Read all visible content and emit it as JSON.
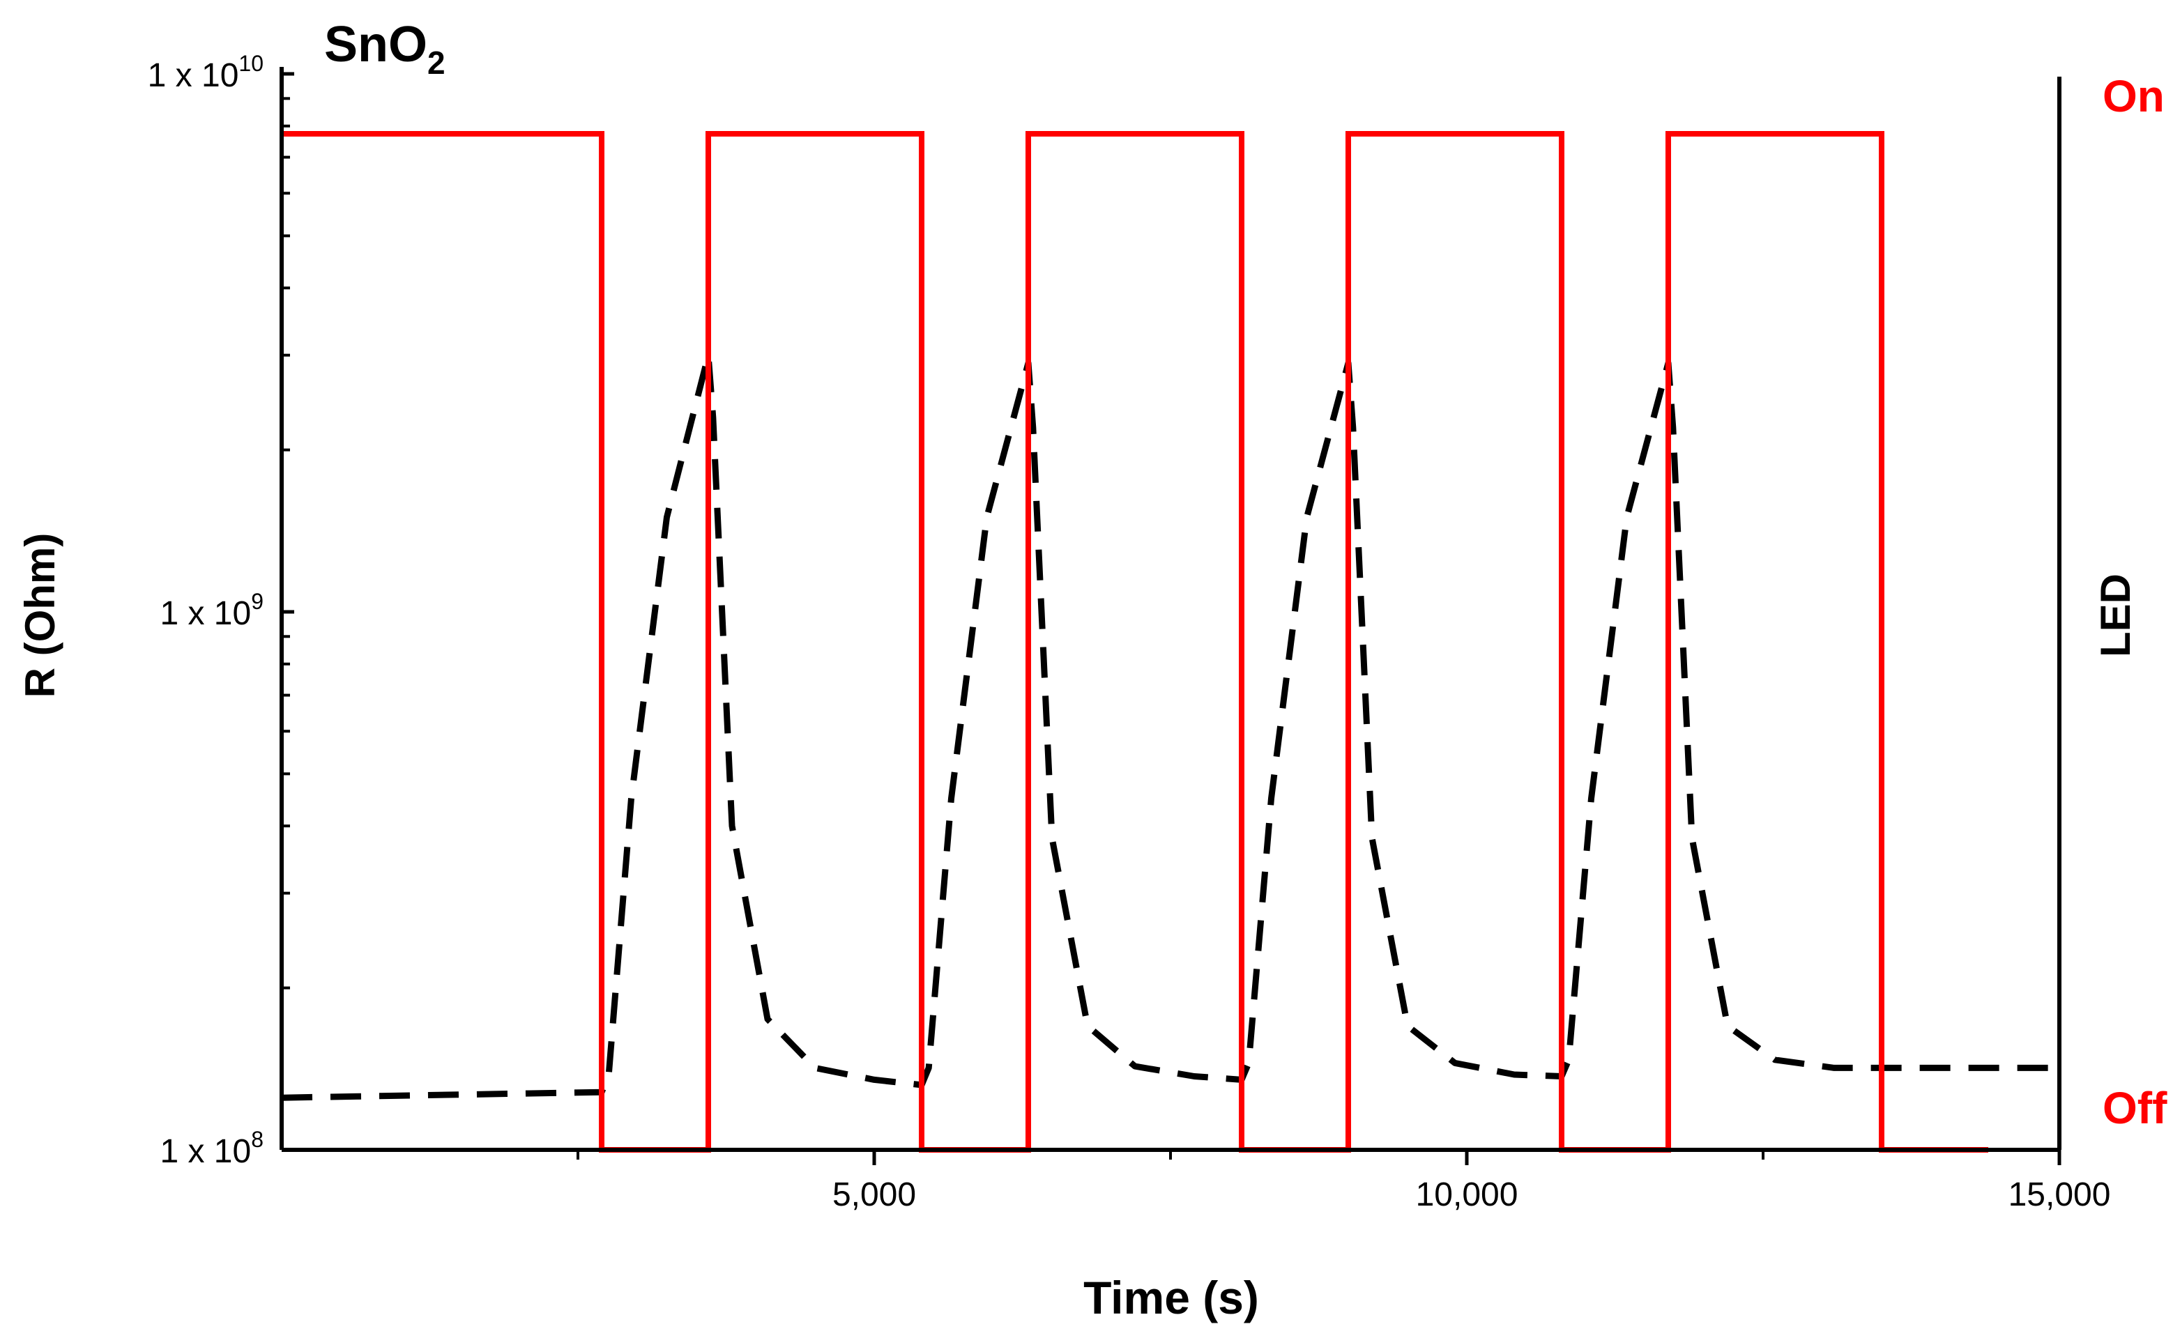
{
  "chart_data": {
    "type": "line",
    "title_main": "SnO",
    "title_sub": "2",
    "xlabel": "Time (s)",
    "ylabel": "R (Ohm)",
    "y2label": "LED",
    "xlim": [
      0,
      15000
    ],
    "ylim": [
      100000000,
      10000000000
    ],
    "yscale": "log",
    "x_ticks": [
      {
        "value": 5000,
        "label": "5,000"
      },
      {
        "value": 10000,
        "label": "10,000"
      },
      {
        "value": 15000,
        "label": "15,000"
      }
    ],
    "x_minor_ticks": [
      2500,
      7500,
      12500
    ],
    "y_ticks": [
      {
        "value": 100000000,
        "base": "1 x 10",
        "exp": "8"
      },
      {
        "value": 1000000000,
        "base": "1 x 10",
        "exp": "9"
      },
      {
        "value": 10000000000,
        "base": "1 x 10",
        "exp": "10"
      }
    ],
    "y2_ticks": [
      {
        "value": 1,
        "label": "On"
      },
      {
        "value": 0,
        "label": "Off"
      }
    ],
    "colors": {
      "resistance": "#000000",
      "led": "#ff0000",
      "axis": "#000000",
      "led_label": "#ff0000"
    },
    "series": [
      {
        "name": "R (Ohm)",
        "axis": "left",
        "style": "dashed",
        "points": [
          [
            0,
            125000000.0
          ],
          [
            2700,
            128000000.0
          ],
          [
            2760,
            138000000.0
          ],
          [
            2950,
            450000000.0
          ],
          [
            3250,
            1500000000.0
          ],
          [
            3600,
            3000000000.0
          ],
          [
            3640,
            2300000000.0
          ],
          [
            3800,
            400000000.0
          ],
          [
            4100,
            175000000.0
          ],
          [
            4500,
            142000000.0
          ],
          [
            5000,
            135000000.0
          ],
          [
            5400,
            132000000.0
          ],
          [
            5460,
            142000000.0
          ],
          [
            5650,
            450000000.0
          ],
          [
            5950,
            1500000000.0
          ],
          [
            6300,
            2900000000.0
          ],
          [
            6340,
            2200000000.0
          ],
          [
            6500,
            380000000.0
          ],
          [
            6800,
            170000000.0
          ],
          [
            7200,
            143000000.0
          ],
          [
            7700,
            137000000.0
          ],
          [
            8100,
            135000000.0
          ],
          [
            8160,
            145000000.0
          ],
          [
            8350,
            450000000.0
          ],
          [
            8650,
            1500000000.0
          ],
          [
            9000,
            2900000000.0
          ],
          [
            9040,
            2200000000.0
          ],
          [
            9200,
            380000000.0
          ],
          [
            9500,
            170000000.0
          ],
          [
            9900,
            145000000.0
          ],
          [
            10400,
            138000000.0
          ],
          [
            10800,
            137000000.0
          ],
          [
            10860,
            147000000.0
          ],
          [
            11050,
            450000000.0
          ],
          [
            11350,
            1500000000.0
          ],
          [
            11700,
            2900000000.0
          ],
          [
            11740,
            2200000000.0
          ],
          [
            11900,
            380000000.0
          ],
          [
            12200,
            170000000.0
          ],
          [
            12600,
            147000000.0
          ],
          [
            13100,
            142000000.0
          ],
          [
            15000,
            142000000.0
          ]
        ]
      },
      {
        "name": "LED",
        "axis": "right",
        "style": "step",
        "points": [
          [
            0,
            1
          ],
          [
            2700,
            1
          ],
          [
            2700,
            0
          ],
          [
            3600,
            0
          ],
          [
            3600,
            1
          ],
          [
            5400,
            1
          ],
          [
            5400,
            0
          ],
          [
            6300,
            0
          ],
          [
            6300,
            1
          ],
          [
            8100,
            1
          ],
          [
            8100,
            0
          ],
          [
            9000,
            0
          ],
          [
            9000,
            1
          ],
          [
            10800,
            1
          ],
          [
            10800,
            0
          ],
          [
            11700,
            0
          ],
          [
            11700,
            1
          ],
          [
            13500,
            1
          ],
          [
            13500,
            0
          ],
          [
            14400,
            0
          ]
        ]
      }
    ]
  }
}
